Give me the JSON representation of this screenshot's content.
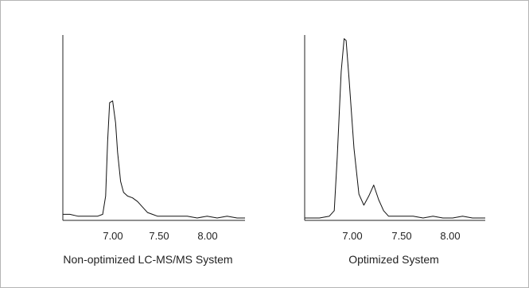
{
  "chart_data": [
    {
      "type": "line",
      "title": "Non-optimized LC-MS/MS System",
      "xticks": [
        "7.00",
        "7.50",
        "8.00"
      ],
      "xlim": [
        6.55,
        8.38
      ],
      "ylim": [
        0,
        100
      ],
      "series": [
        {
          "x": [
            6.55,
            6.62,
            6.7,
            6.8,
            6.9,
            6.95,
            6.98,
            7.0,
            7.02,
            7.05,
            7.08,
            7.1,
            7.13,
            7.16,
            7.2,
            7.25,
            7.3,
            7.35,
            7.4,
            7.45,
            7.5,
            7.6,
            7.7,
            7.8,
            7.9,
            8.0,
            8.1,
            8.2,
            8.3,
            8.38
          ],
          "y": [
            2,
            2,
            1,
            1,
            1,
            2,
            12,
            42,
            63,
            64,
            52,
            36,
            20,
            14,
            12,
            11,
            9,
            6,
            3,
            2,
            1,
            1,
            1,
            1,
            0,
            1,
            0,
            1,
            0,
            0
          ]
        }
      ]
    },
    {
      "type": "line",
      "title": "Optimized System",
      "xticks": [
        "7.00",
        "7.50",
        "8.00"
      ],
      "xlim": [
        6.55,
        8.38
      ],
      "ylim": [
        0,
        100
      ],
      "series": [
        {
          "x": [
            6.55,
            6.62,
            6.7,
            6.8,
            6.85,
            6.88,
            6.92,
            6.95,
            6.97,
            7.0,
            7.05,
            7.1,
            7.15,
            7.2,
            7.25,
            7.3,
            7.35,
            7.4,
            7.45,
            7.55,
            7.65,
            7.75,
            7.85,
            7.95,
            8.05,
            8.15,
            8.25,
            8.38
          ],
          "y": [
            0,
            0,
            0,
            1,
            4,
            33,
            80,
            98,
            97,
            76,
            38,
            13,
            7,
            12,
            18,
            10,
            4,
            1,
            1,
            1,
            1,
            0,
            1,
            0,
            0,
            1,
            0,
            0
          ]
        }
      ]
    }
  ]
}
